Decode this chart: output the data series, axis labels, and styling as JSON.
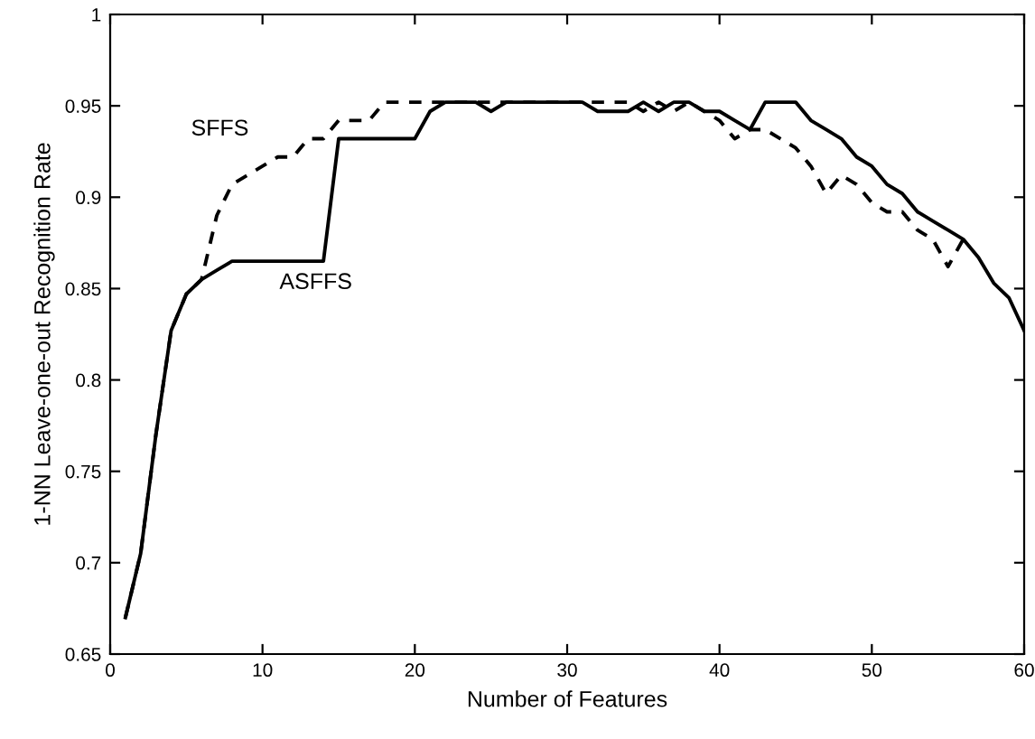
{
  "chart_data": {
    "type": "line",
    "xlabel": "Number of Features",
    "ylabel": "1-NN Leave-one-out Recognition Rate",
    "xlim": [
      0,
      60
    ],
    "xticks": [
      0,
      10,
      20,
      30,
      40,
      50,
      60
    ],
    "ylim": [
      0.65,
      1
    ],
    "yticks": [
      0.65,
      0.7,
      0.75,
      0.8,
      0.85,
      0.9,
      0.95,
      1
    ],
    "grid": false,
    "legend": false,
    "marker": "none",
    "annotations": [
      "SFFS",
      "ASFFS"
    ],
    "series": [
      {
        "color": "#000000",
        "line_style": "solid",
        "x": [
          1,
          2,
          3,
          4,
          5,
          6,
          7,
          8,
          9,
          10,
          11,
          12,
          13,
          14,
          15,
          16,
          17,
          18,
          19,
          20,
          21,
          22,
          23,
          24,
          25,
          26,
          27,
          28,
          29,
          30,
          31,
          32,
          33,
          34,
          35,
          36,
          37,
          38,
          39,
          40,
          41,
          42,
          43,
          44,
          45,
          46,
          47,
          48,
          49,
          50,
          51,
          52,
          53,
          54,
          55,
          56,
          57,
          58,
          59,
          60
        ],
        "values": [
          0.67,
          0.705,
          0.77,
          0.827,
          0.847,
          0.855,
          0.86,
          0.865,
          0.865,
          0.865,
          0.865,
          0.865,
          0.865,
          0.865,
          0.932,
          0.932,
          0.932,
          0.932,
          0.932,
          0.932,
          0.947,
          0.952,
          0.952,
          0.952,
          0.947,
          0.952,
          0.952,
          0.952,
          0.952,
          0.952,
          0.952,
          0.947,
          0.947,
          0.947,
          0.952,
          0.947,
          0.952,
          0.952,
          0.947,
          0.947,
          0.942,
          0.937,
          0.952,
          0.952,
          0.952,
          0.942,
          0.937,
          0.932,
          0.922,
          0.917,
          0.907,
          0.902,
          0.892,
          0.887,
          0.882,
          0.877,
          0.867,
          0.853,
          0.845,
          0.827
        ]
      },
      {
        "color": "#000000",
        "line_style": "dashed",
        "x": [
          1,
          2,
          3,
          4,
          5,
          6,
          7,
          8,
          9,
          10,
          11,
          12,
          13,
          14,
          15,
          16,
          17,
          18,
          19,
          20,
          21,
          22,
          23,
          24,
          25,
          26,
          27,
          28,
          29,
          30,
          31,
          32,
          33,
          34,
          35,
          36,
          37,
          38,
          39,
          40,
          41,
          42,
          43,
          44,
          45,
          46,
          47,
          48,
          49,
          50,
          51,
          52,
          53,
          54,
          55,
          56
        ],
        "values": [
          0.67,
          0.705,
          0.77,
          0.827,
          0.847,
          0.855,
          0.89,
          0.907,
          0.912,
          0.917,
          0.922,
          0.922,
          0.932,
          0.932,
          0.942,
          0.942,
          0.942,
          0.952,
          0.952,
          0.952,
          0.952,
          0.952,
          0.952,
          0.952,
          0.952,
          0.952,
          0.952,
          0.952,
          0.952,
          0.952,
          0.952,
          0.952,
          0.952,
          0.952,
          0.947,
          0.952,
          0.947,
          0.952,
          0.947,
          0.942,
          0.932,
          0.937,
          0.937,
          0.932,
          0.927,
          0.917,
          0.902,
          0.912,
          0.907,
          0.897,
          0.892,
          0.892,
          0.882,
          0.877,
          0.862,
          0.877
        ]
      }
    ]
  }
}
